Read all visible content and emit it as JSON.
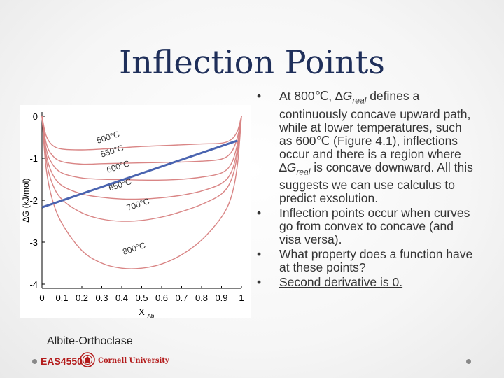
{
  "slide": {
    "title": "Inflection Points",
    "caption": "Albite-Orthoclase",
    "footer": {
      "course": "EAS4550",
      "institution": "Cornell University"
    }
  },
  "bullets": [
    {
      "parts": [
        {
          "t": "At 800℃, ∆"
        },
        {
          "t": "G",
          "style": "italic"
        },
        {
          "t": "real",
          "style": "sub"
        },
        {
          "t": " defines a continuously concave upward path, while at lower temperatures, such as 600℃ (Figure 4.1), inflections occur and there is a region where ∆"
        },
        {
          "t": "G",
          "style": "italic"
        },
        {
          "t": "real",
          "style": "sub"
        },
        {
          "t": " is concave downward. All this suggests we can use calculus to predict exsolution."
        }
      ]
    },
    {
      "parts": [
        {
          "t": "Inflection points occur when curves go from convex to concave (and visa versa)."
        }
      ]
    },
    {
      "parts": [
        {
          "t": "What property does a function have at these points?"
        }
      ]
    },
    {
      "parts": [
        {
          "t": "Second derivative is 0.",
          "style": "underline"
        }
      ]
    }
  ],
  "chart_data": {
    "type": "line",
    "xlabel": "X",
    "xlabel_sub": "Ab",
    "ylabel": "∆G (kJ/mol)",
    "xlim": [
      0,
      1
    ],
    "ylim": [
      -4.1,
      0.1
    ],
    "xticks": [
      "0",
      "0.1",
      "0.2",
      "0.3",
      "0.4",
      "0.5",
      "0.6",
      "0.7",
      "0.8",
      "0.9",
      "1"
    ],
    "yticks": [
      "0",
      "-1",
      "-2",
      "-3",
      "-4"
    ],
    "colors": {
      "curves": "#d98585",
      "tangent": "#4a64b0",
      "axis": "#000000"
    },
    "series": [
      {
        "name": "500°C",
        "x": [
          0,
          0.02,
          0.05,
          0.1,
          0.2,
          0.3,
          0.4,
          0.5,
          0.6,
          0.7,
          0.8,
          0.9,
          0.95,
          0.98,
          1
        ],
        "y": [
          0,
          -0.45,
          -0.68,
          -0.78,
          -0.8,
          -0.78,
          -0.75,
          -0.72,
          -0.7,
          -0.68,
          -0.66,
          -0.64,
          -0.55,
          -0.35,
          0
        ],
        "label_x": 0.28,
        "label_y": -0.65
      },
      {
        "name": "550°C",
        "x": [
          0,
          0.02,
          0.05,
          0.1,
          0.2,
          0.3,
          0.4,
          0.5,
          0.6,
          0.7,
          0.8,
          0.9,
          0.95,
          0.98,
          1
        ],
        "y": [
          0,
          -0.62,
          -0.92,
          -1.08,
          -1.14,
          -1.13,
          -1.12,
          -1.11,
          -1.1,
          -1.09,
          -1.07,
          -1.02,
          -0.85,
          -0.5,
          0
        ],
        "label_x": 0.3,
        "label_y": -0.98
      },
      {
        "name": "600°C",
        "x": [
          0,
          0.02,
          0.05,
          0.1,
          0.2,
          0.3,
          0.4,
          0.5,
          0.6,
          0.7,
          0.8,
          0.9,
          0.95,
          0.98,
          1
        ],
        "y": [
          0,
          -0.75,
          -1.12,
          -1.35,
          -1.47,
          -1.5,
          -1.51,
          -1.52,
          -1.52,
          -1.5,
          -1.45,
          -1.35,
          -1.12,
          -0.65,
          0
        ],
        "label_x": 0.33,
        "label_y": -1.35
      },
      {
        "name": "650°C",
        "x": [
          0,
          0.02,
          0.05,
          0.1,
          0.2,
          0.3,
          0.4,
          0.5,
          0.6,
          0.7,
          0.8,
          0.9,
          0.95,
          0.98,
          1
        ],
        "y": [
          0,
          -0.88,
          -1.35,
          -1.65,
          -1.85,
          -1.93,
          -1.97,
          -1.97,
          -1.94,
          -1.88,
          -1.78,
          -1.6,
          -1.32,
          -0.78,
          0
        ],
        "label_x": 0.34,
        "label_y": -1.78
      },
      {
        "name": "700°C",
        "x": [
          0,
          0.02,
          0.05,
          0.1,
          0.2,
          0.3,
          0.4,
          0.5,
          0.6,
          0.7,
          0.8,
          0.9,
          0.95,
          0.98,
          1
        ],
        "y": [
          0,
          -1.0,
          -1.58,
          -1.98,
          -2.3,
          -2.45,
          -2.5,
          -2.48,
          -2.4,
          -2.27,
          -2.1,
          -1.85,
          -1.5,
          -0.9,
          0
        ],
        "label_x": 0.43,
        "label_y": -2.25
      },
      {
        "name": "800°C",
        "x": [
          0,
          0.02,
          0.05,
          0.1,
          0.2,
          0.3,
          0.4,
          0.5,
          0.6,
          0.7,
          0.8,
          0.9,
          0.95,
          0.98,
          1
        ],
        "y": [
          0,
          -1.2,
          -1.95,
          -2.55,
          -3.2,
          -3.5,
          -3.62,
          -3.62,
          -3.52,
          -3.3,
          -2.95,
          -2.4,
          -1.9,
          -1.15,
          0
        ],
        "label_x": 0.41,
        "label_y": -3.3
      }
    ],
    "tangent": {
      "x": [
        0,
        0.98
      ],
      "y": [
        -2.17,
        -0.58
      ]
    }
  }
}
